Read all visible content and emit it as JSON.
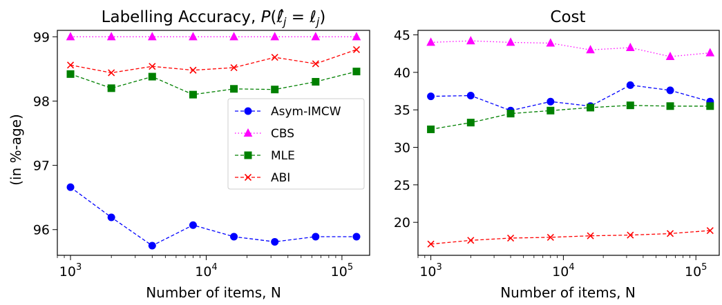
{
  "chart_data": [
    {
      "type": "line",
      "title": "Labelling Accuracy, ",
      "title_math": "P(ℓ̂j = ℓj)",
      "xlabel": "Number of items, N",
      "ylabel": "(in %-age)",
      "xscale": "log",
      "xlim": [
        800,
        160000
      ],
      "ylim": [
        95.6,
        99.1
      ],
      "x": [
        1000,
        2000,
        4000,
        8000,
        16000,
        32000,
        64000,
        128000
      ],
      "xticks": [
        1000,
        10000,
        100000
      ],
      "xtick_labels": [
        {
          "base": "10",
          "exp": "3"
        },
        {
          "base": "10",
          "exp": "4"
        },
        {
          "base": "10",
          "exp": "5"
        }
      ],
      "yticks": [
        96,
        97,
        98,
        99
      ],
      "ytick_labels": [
        "96",
        "97",
        "98",
        "99"
      ],
      "legend_position": "center-right",
      "series": [
        {
          "name": "Asym-IMCW",
          "color": "#0000ff",
          "marker": "circle",
          "linestyle": "dashed",
          "values": [
            96.66,
            96.19,
            95.75,
            96.07,
            95.89,
            95.81,
            95.89,
            95.89
          ]
        },
        {
          "name": "CBS",
          "color": "#ff00ff",
          "marker": "triangle",
          "linestyle": "dotted",
          "values": [
            99.0,
            99.0,
            99.0,
            99.0,
            99.0,
            99.0,
            99.0,
            99.0
          ]
        },
        {
          "name": "MLE",
          "color": "#008000",
          "marker": "square",
          "linestyle": "dashed",
          "values": [
            98.42,
            98.2,
            98.38,
            98.1,
            98.19,
            98.18,
            98.3,
            98.46
          ]
        },
        {
          "name": "ABI",
          "color": "#ff0000",
          "marker": "x",
          "linestyle": "dashed",
          "values": [
            98.56,
            98.44,
            98.54,
            98.48,
            98.52,
            98.68,
            98.58,
            98.8
          ]
        }
      ]
    },
    {
      "type": "line",
      "title": "Cost",
      "xlabel": "Number of items, N",
      "ylabel": "",
      "xscale": "log",
      "xlim": [
        800,
        150000
      ],
      "ylim": [
        15.6,
        45.6
      ],
      "x": [
        1000,
        2000,
        4000,
        8000,
        16000,
        32000,
        64000,
        128000
      ],
      "xticks": [
        1000,
        10000,
        100000
      ],
      "xtick_labels": [
        {
          "base": "10",
          "exp": "3"
        },
        {
          "base": "10",
          "exp": "4"
        },
        {
          "base": "10",
          "exp": "5"
        }
      ],
      "yticks": [
        20,
        25,
        30,
        35,
        40,
        45
      ],
      "ytick_labels": [
        "20",
        "25",
        "30",
        "35",
        "40",
        "45"
      ],
      "series": [
        {
          "name": "Asym-IMCW",
          "color": "#0000ff",
          "marker": "circle",
          "linestyle": "dashed",
          "values": [
            36.8,
            36.9,
            34.9,
            36.1,
            35.5,
            38.3,
            37.6,
            36.1
          ]
        },
        {
          "name": "CBS",
          "color": "#ff00ff",
          "marker": "triangle",
          "linestyle": "dotted",
          "values": [
            44.0,
            44.2,
            44.0,
            43.9,
            43.0,
            43.3,
            42.1,
            42.6
          ]
        },
        {
          "name": "MLE",
          "color": "#008000",
          "marker": "square",
          "linestyle": "dashed",
          "values": [
            32.4,
            33.3,
            34.5,
            34.9,
            35.3,
            35.6,
            35.5,
            35.5
          ]
        },
        {
          "name": "ABI",
          "color": "#ff0000",
          "marker": "x",
          "linestyle": "dashed",
          "values": [
            17.1,
            17.6,
            17.9,
            18.0,
            18.2,
            18.3,
            18.5,
            18.9
          ]
        }
      ]
    }
  ]
}
